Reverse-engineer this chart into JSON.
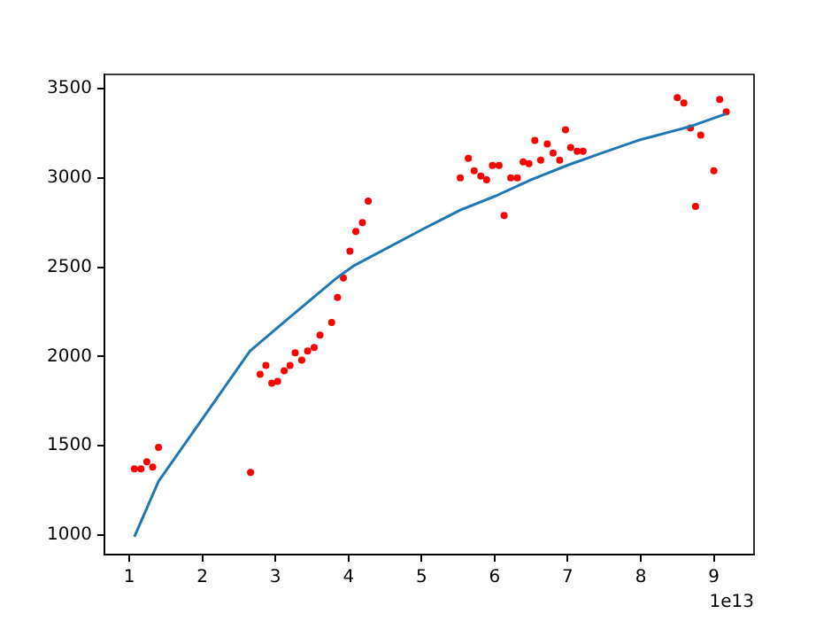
{
  "chart_data": {
    "type": "scatter",
    "xlim": [
      0.66,
      9.55
    ],
    "ylim": [
      890,
      3580
    ],
    "xticks": [
      1,
      2,
      3,
      4,
      5,
      6,
      7,
      8,
      9
    ],
    "yticks": [
      1000,
      1500,
      2000,
      2500,
      3000,
      3500
    ],
    "annotations": [
      "1e13"
    ],
    "grid": false,
    "legend": false,
    "series": [
      {
        "color": "#ff0000",
        "marker": "circle",
        "x": [
          1.07,
          1.16,
          1.24,
          1.32,
          1.4,
          2.66,
          2.79,
          2.87,
          2.95,
          3.03,
          3.12,
          3.2,
          3.27,
          3.36,
          3.44,
          3.53,
          3.61,
          3.77,
          3.85,
          3.93,
          4.02,
          4.1,
          4.19,
          4.27,
          5.53,
          5.64,
          5.72,
          5.81,
          5.89,
          5.97,
          6.06,
          6.13,
          6.22,
          6.31,
          6.39,
          6.47,
          6.55,
          6.63,
          6.72,
          6.8,
          6.89,
          6.97,
          7.04,
          7.13,
          7.21,
          8.5,
          8.59,
          8.68,
          8.75,
          8.82,
          9.0,
          9.08,
          9.17
        ],
        "values": [
          1370,
          1370,
          1410,
          1380,
          1490,
          1350,
          1900,
          1950,
          1850,
          1860,
          1920,
          1950,
          2020,
          1980,
          2030,
          2050,
          2120,
          2190,
          2330,
          2440,
          2590,
          2700,
          2750,
          2870,
          3000,
          3110,
          3040,
          3010,
          2990,
          3070,
          3070,
          2790,
          3000,
          3000,
          3090,
          3080,
          3210,
          3100,
          3190,
          3140,
          3100,
          3270,
          3170,
          3150,
          3150,
          3450,
          3420,
          3280,
          2840,
          3240,
          3040,
          3440,
          3370
        ]
      },
      {
        "type": "line",
        "color": "#1f77b4",
        "marker": "none",
        "line_style": "solid",
        "x": [
          1.07,
          1.4,
          2.65,
          3.11,
          3.84,
          4.08,
          5.05,
          5.53,
          6.02,
          6.5,
          6.99,
          7.47,
          7.96,
          8.69,
          9.17
        ],
        "values": [
          990,
          1300,
          2030,
          2190,
          2440,
          2510,
          2720,
          2820,
          2900,
          2990,
          3070,
          3140,
          3210,
          3290,
          3360
        ]
      }
    ]
  }
}
